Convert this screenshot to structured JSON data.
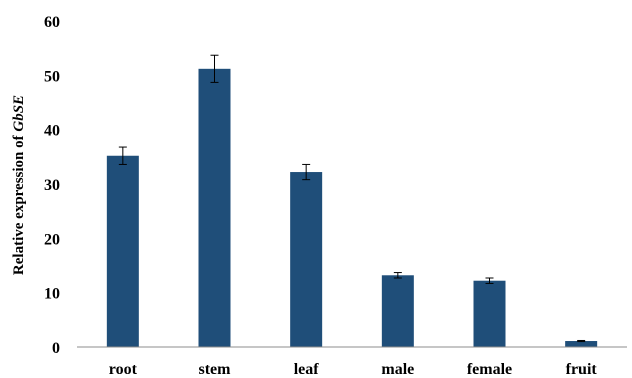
{
  "chart_data": {
    "type": "bar",
    "categories": [
      "root",
      "stem",
      "leaf",
      "male",
      "female",
      "fruit"
    ],
    "values": [
      35.2,
      51.2,
      32.2,
      13.2,
      12.2,
      1.1
    ],
    "errors": [
      1.6,
      2.5,
      1.4,
      0.5,
      0.5,
      0.1
    ],
    "title": "",
    "xlabel": "",
    "ylabel": "Relative expression of ",
    "ylabel_italic": "GbSE",
    "ylim": [
      0,
      60
    ],
    "yticks": [
      "0",
      "10",
      "20",
      "30",
      "40",
      "50",
      "60"
    ],
    "grid": false,
    "legend": "none",
    "bar_color": "#1f4e79"
  }
}
